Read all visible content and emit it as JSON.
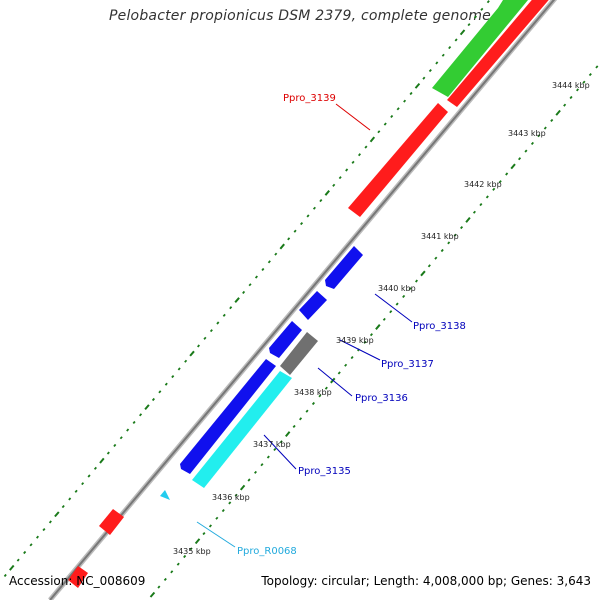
{
  "title": "Pelobacter propionicus DSM 2379, complete genome",
  "accession": "Accession: NC_008609",
  "topology": "Topology: circular; Length: 4,008,000 bp; Genes: 3,643",
  "colors": {
    "backbone": "#888888",
    "tick": "#1a7a1a",
    "red_gene": "#ff1c1c",
    "green_gene": "#33cc33",
    "blue_gene": "#1010ee",
    "cyan_gene": "#22eeee",
    "gray_gene": "#707070",
    "label_red": "#dd0000",
    "label_blue": "#0000bb",
    "label_cyan": "#22aadd"
  },
  "tick_labels": [
    "3435 kbp",
    "3436 kbp",
    "3437 kbp",
    "3438 kbp",
    "3439 kbp",
    "3440 kbp",
    "3441 kbp",
    "3442 kbp",
    "3443 kbp",
    "3444 kbp"
  ],
  "gene_labels": {
    "ppro_3139": "Ppro_3139",
    "ppro_3138": "Ppro_3138",
    "ppro_3137": "Ppro_3137",
    "ppro_3136": "Ppro_3136",
    "ppro_3135": "Ppro_3135",
    "ppro_r0068": "Ppro_R0068"
  }
}
